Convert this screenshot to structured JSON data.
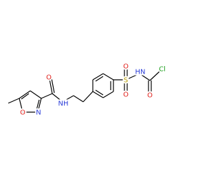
{
  "atoms": [
    "N",
    "O",
    "O",
    "NH",
    "S",
    "O",
    "O",
    "HN",
    "O",
    "Cl"
  ]
}
